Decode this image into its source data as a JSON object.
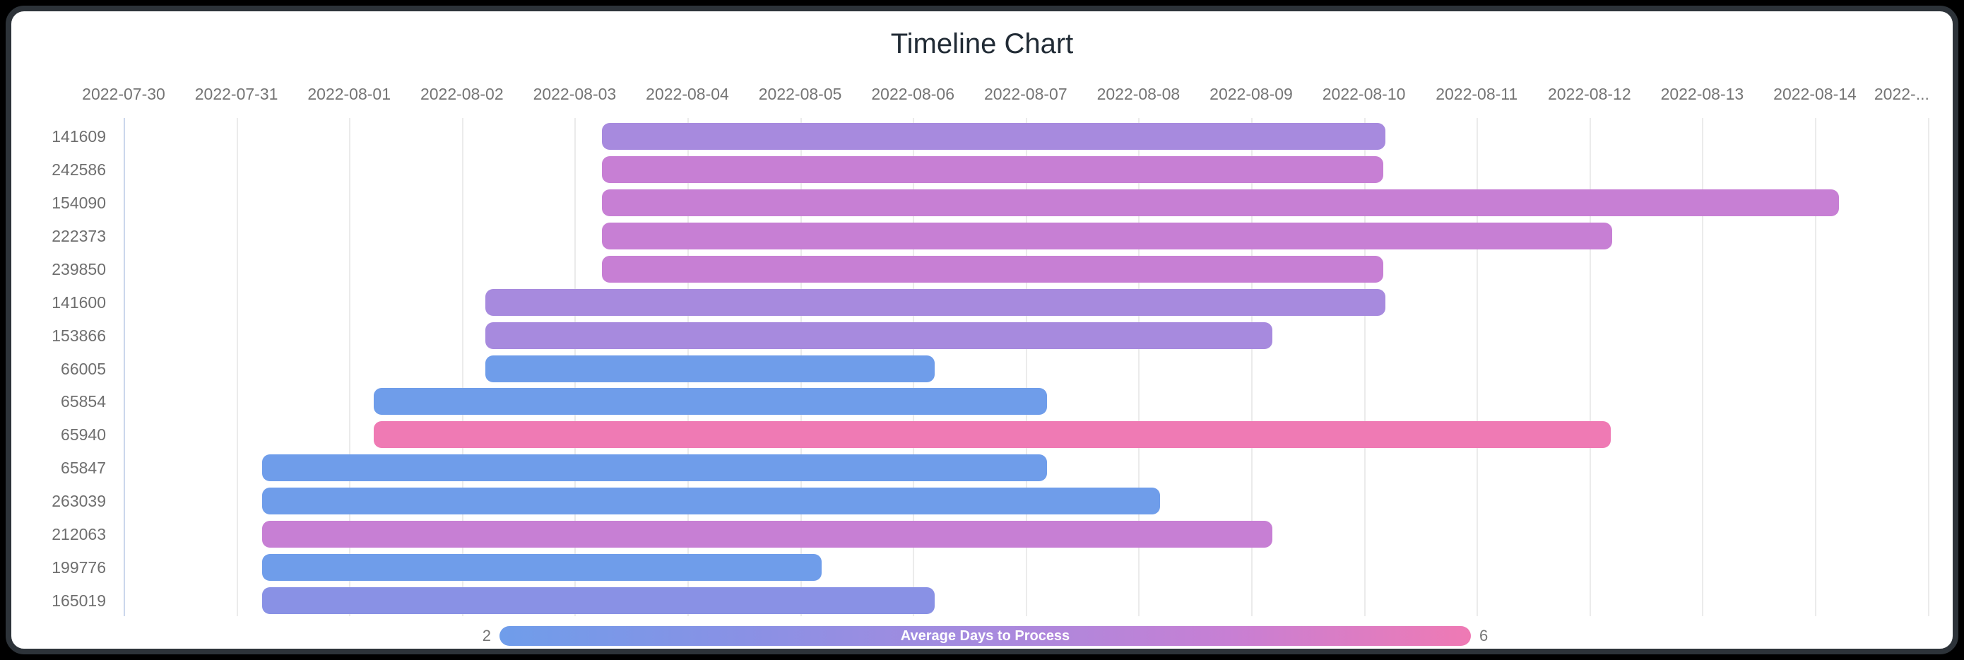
{
  "chart": {
    "title": "Timeline Chart",
    "legend": {
      "title": "Average Days to Process",
      "min": "2",
      "max": "6"
    }
  },
  "chart_data": {
    "type": "timeline",
    "title": "Timeline Chart",
    "x_axis": {
      "unit": "date",
      "range_start": "2022-07-30",
      "range_end": "2022-08-16",
      "gridline_count": 17,
      "grid_on": true,
      "ticks": [
        {
          "label": "2022-07-30",
          "day": 0
        },
        {
          "label": "2022-07-31",
          "day": 1
        },
        {
          "label": "2022-08-01",
          "day": 2
        },
        {
          "label": "2022-08-02",
          "day": 3
        },
        {
          "label": "2022-08-03",
          "day": 4
        },
        {
          "label": "2022-08-04",
          "day": 5
        },
        {
          "label": "2022-08-05",
          "day": 6
        },
        {
          "label": "2022-08-06",
          "day": 7
        },
        {
          "label": "2022-08-07",
          "day": 8
        },
        {
          "label": "2022-08-08",
          "day": 9
        },
        {
          "label": "2022-08-09",
          "day": 10
        },
        {
          "label": "2022-08-10",
          "day": 11
        },
        {
          "label": "2022-08-11",
          "day": 12
        },
        {
          "label": "2022-08-12",
          "day": 13
        },
        {
          "label": "2022-08-13",
          "day": 14
        },
        {
          "label": "2022-08-14",
          "day": 15
        },
        {
          "label": "2022-...",
          "day": 15.77
        }
      ]
    },
    "y_axis": {
      "labels": [
        "141609",
        "242586",
        "154090",
        "222373",
        "239850",
        "141600",
        "153866",
        "66005",
        "65854",
        "65940",
        "65847",
        "263039",
        "212063",
        "199776",
        "165019"
      ]
    },
    "colors": {
      "blue": "#6f9dea",
      "periwinkle": "#8991e5",
      "purple": "#a78ade",
      "orchid": "#c77fd4",
      "pink": "#ef7ab4"
    },
    "legend": {
      "title": "Average Days to Process",
      "min": 2,
      "max": 6,
      "position": "bottom",
      "gradient": [
        "#6f9dea",
        "#8991e5",
        "#a78ade",
        "#c77fd4",
        "#ef7ab4"
      ]
    },
    "rows": [
      {
        "id": "141609",
        "start_day": 4.24,
        "end_day": 11.19,
        "start_date": "2022-08-03",
        "end_date": "2022-08-10",
        "duration_days": 7,
        "color": "purple",
        "avg_days_to_process": 4
      },
      {
        "id": "242586",
        "start_day": 4.24,
        "end_day": 11.17,
        "start_date": "2022-08-03",
        "end_date": "2022-08-10",
        "duration_days": 7,
        "color": "orchid",
        "avg_days_to_process": 5
      },
      {
        "id": "154090",
        "start_day": 4.24,
        "end_day": 15.21,
        "start_date": "2022-08-03",
        "end_date": "2022-08-14",
        "duration_days": 11,
        "color": "orchid",
        "avg_days_to_process": 5
      },
      {
        "id": "222373",
        "start_day": 4.24,
        "end_day": 13.2,
        "start_date": "2022-08-03",
        "end_date": "2022-08-12",
        "duration_days": 9,
        "color": "orchid",
        "avg_days_to_process": 5
      },
      {
        "id": "239850",
        "start_day": 4.24,
        "end_day": 11.17,
        "start_date": "2022-08-03",
        "end_date": "2022-08-10",
        "duration_days": 7,
        "color": "orchid",
        "avg_days_to_process": 5
      },
      {
        "id": "141600",
        "start_day": 3.21,
        "end_day": 11.19,
        "start_date": "2022-08-02",
        "end_date": "2022-08-10",
        "duration_days": 8,
        "color": "purple",
        "avg_days_to_process": 4
      },
      {
        "id": "153866",
        "start_day": 3.21,
        "end_day": 10.19,
        "start_date": "2022-08-02",
        "end_date": "2022-08-09",
        "duration_days": 7,
        "color": "purple",
        "avg_days_to_process": 4
      },
      {
        "id": "66005",
        "start_day": 3.21,
        "end_day": 7.19,
        "start_date": "2022-08-02",
        "end_date": "2022-08-06",
        "duration_days": 4,
        "color": "blue",
        "avg_days_to_process": 2
      },
      {
        "id": "65854",
        "start_day": 2.22,
        "end_day": 8.19,
        "start_date": "2022-08-01",
        "end_date": "2022-08-07",
        "duration_days": 6,
        "color": "blue",
        "avg_days_to_process": 2
      },
      {
        "id": "65940",
        "start_day": 2.22,
        "end_day": 13.19,
        "start_date": "2022-08-01",
        "end_date": "2022-08-12",
        "duration_days": 11,
        "color": "pink",
        "avg_days_to_process": 6
      },
      {
        "id": "65847",
        "start_day": 1.23,
        "end_day": 8.19,
        "start_date": "2022-07-31",
        "end_date": "2022-08-07",
        "duration_days": 7,
        "color": "blue",
        "avg_days_to_process": 2
      },
      {
        "id": "263039",
        "start_day": 1.23,
        "end_day": 9.19,
        "start_date": "2022-07-31",
        "end_date": "2022-08-08",
        "duration_days": 8,
        "color": "blue",
        "avg_days_to_process": 2
      },
      {
        "id": "212063",
        "start_day": 1.23,
        "end_day": 10.19,
        "start_date": "2022-07-31",
        "end_date": "2022-08-09",
        "duration_days": 9,
        "color": "orchid",
        "avg_days_to_process": 5
      },
      {
        "id": "199776",
        "start_day": 1.23,
        "end_day": 6.19,
        "start_date": "2022-07-31",
        "end_date": "2022-08-05",
        "duration_days": 5,
        "color": "blue",
        "avg_days_to_process": 2
      },
      {
        "id": "165019",
        "start_day": 1.23,
        "end_day": 7.19,
        "start_date": "2022-07-31",
        "end_date": "2022-08-06",
        "duration_days": 6,
        "color": "periwinkle",
        "avg_days_to_process": 3
      }
    ]
  }
}
